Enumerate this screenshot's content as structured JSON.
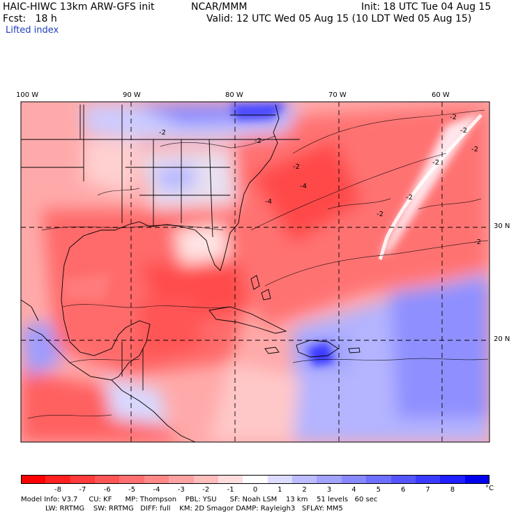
{
  "header": {
    "model_line": "HAIC-HIWC 13km ARW-GFS init",
    "org": "NCAR/MMM",
    "init": "Init: 18 UTC Tue 04 Aug 15",
    "fcst": "Fcst:   18 h",
    "valid": "Valid: 12 UTC Wed 05 Aug 15 (10 LDT Wed 05 Aug 15)",
    "field": "Lifted index"
  },
  "map": {
    "lon_labels": [
      "100 W",
      "90 W",
      "80 W",
      "70 W",
      "60 W"
    ],
    "lat_labels": [
      "30 N",
      "20 N"
    ],
    "contour_labels": [
      "-2",
      "-2",
      "-2",
      "-2",
      "-2",
      "-2",
      "-2",
      "-2",
      "-4",
      "-4",
      "-2",
      "-2"
    ],
    "colors": {
      "negative_strong": "#ff1f1f",
      "positive_strong": "#1f1fff",
      "grid": "#000000"
    }
  },
  "colorbar": {
    "labels": [
      "-8",
      "-7",
      "-6",
      "-5",
      "-4",
      "-3",
      "-2",
      "-1",
      "0",
      "1",
      "2",
      "3",
      "4",
      "5",
      "6",
      "7",
      "8"
    ],
    "unit": "°C",
    "colors": [
      "#ff0000",
      "#ff2121",
      "#ff3b3b",
      "#ff5555",
      "#ff6f6f",
      "#ff8888",
      "#ffa2a2",
      "#ffbcbc",
      "#ffdddd",
      "#ffffff",
      "#dcdcff",
      "#bcbcff",
      "#a2a2ff",
      "#8888ff",
      "#6f6fff",
      "#5555ff",
      "#3b3bff",
      "#1f1fff",
      "#0000ee"
    ]
  },
  "footer": {
    "line1": "Model Info: V3.7     CU: KF      MP: Thompson    PBL: YSU      SF: Noah LSM    13 km    51 levels   60 sec",
    "line2": "           LW: RRTMG    SW: RRTMG   DIFF: full    KM: 2D Smagor DAMP: Rayleigh3   SFLAY: MM5"
  }
}
